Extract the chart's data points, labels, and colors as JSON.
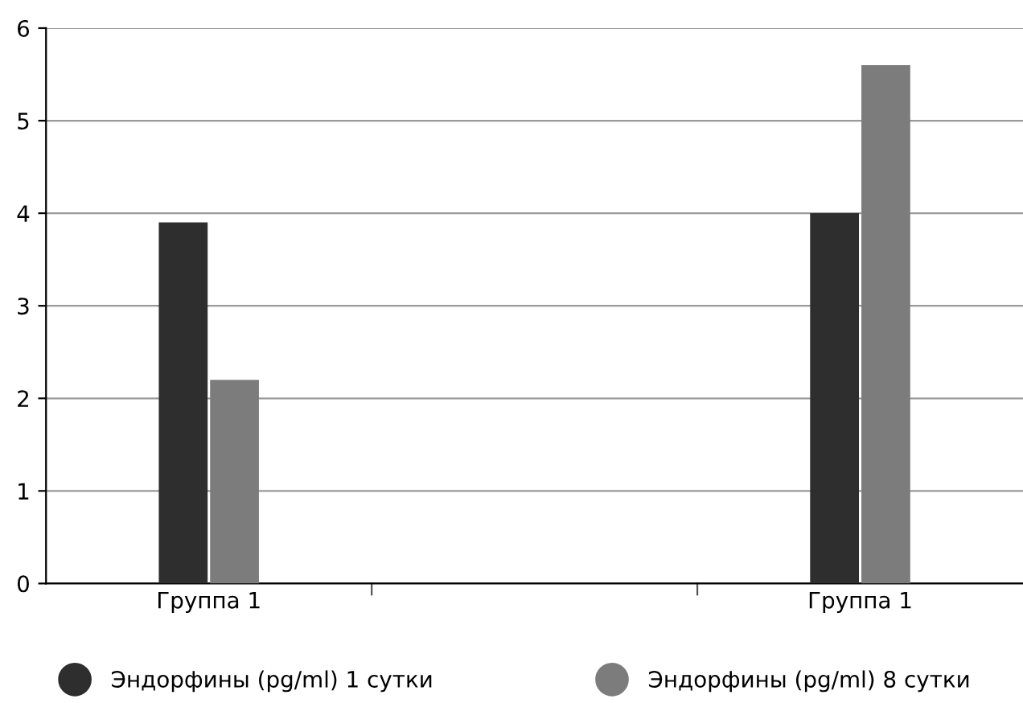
{
  "chart_data": {
    "type": "bar",
    "categories": [
      "Группа 1",
      null,
      "Группа 1"
    ],
    "series": [
      {
        "name": "Эндорфины (pg/ml) 1 сутки",
        "color": "#2e2e2e",
        "values": [
          3.9,
          null,
          4.0
        ]
      },
      {
        "name": "Эндорфины (pg/ml) 8 сутки",
        "color": "#7c7c7c",
        "values": [
          2.2,
          null,
          5.6
        ]
      }
    ],
    "ylim": [
      0,
      6
    ],
    "yticks": [
      0,
      1,
      2,
      3,
      4,
      5,
      6
    ],
    "grid": "y",
    "legend": "bottom",
    "marker": "circle"
  }
}
